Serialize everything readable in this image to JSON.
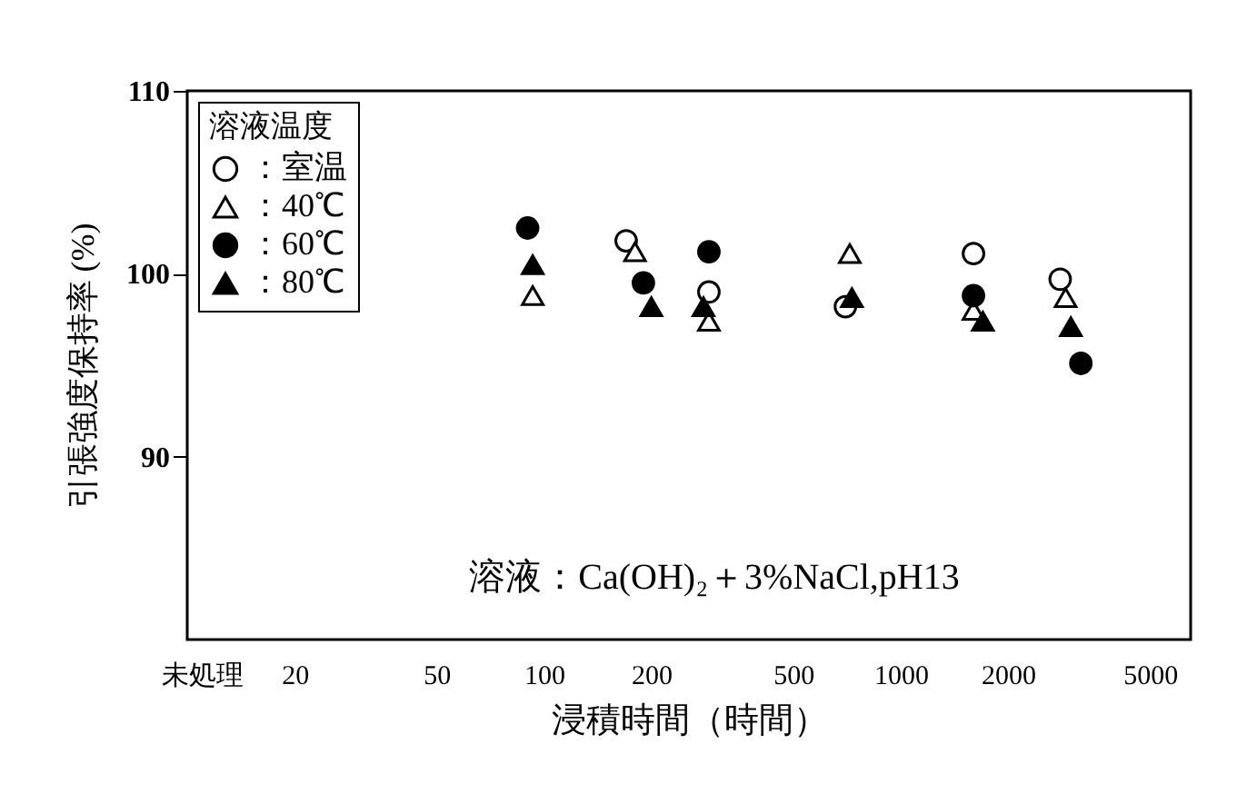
{
  "chart_data": {
    "type": "scatter",
    "xlabel": "浸積時間（時間）",
    "ylabel": "引張強度保持率 (%)",
    "legend_title": "溶液温度",
    "legend": "top left",
    "grid": false,
    "log": "x",
    "xlim": [
      10,
      6500
    ],
    "xticks": [
      {
        "value": 11,
        "label": "未処理"
      },
      20,
      50,
      100,
      200,
      500,
      1000,
      2000,
      5000
    ],
    "ylim": [
      80,
      110
    ],
    "yticks": [
      90,
      100,
      110
    ],
    "annotations": [
      "溶液：Ca(OH)₂＋3%NaCl,pH13"
    ],
    "series": [
      {
        "name": "：室温",
        "color": "#000000",
        "marker": "circle-open",
        "x": [
          170,
          290,
          700,
          1600,
          2800
        ],
        "values": [
          101.8,
          99.0,
          98.2,
          101.1,
          99.7
        ]
      },
      {
        "name": "：40℃",
        "color": "#000000",
        "marker": "triangle-open",
        "x": [
          93,
          180,
          290,
          720,
          1600,
          2900
        ],
        "values": [
          98.8,
          101.2,
          97.4,
          101.1,
          98.0,
          98.7
        ]
      },
      {
        "name": "：60℃",
        "color": "#000000",
        "marker": "circle",
        "x": [
          90,
          190,
          290,
          1600,
          3200
        ],
        "values": [
          102.5,
          99.5,
          101.2,
          98.8,
          95.1
        ]
      },
      {
        "name": "：80℃",
        "color": "#000000",
        "marker": "triangle",
        "x": [
          93,
          200,
          280,
          730,
          1700,
          3000
        ],
        "values": [
          100.5,
          98.2,
          98.2,
          98.7,
          97.4,
          97.1
        ]
      }
    ]
  }
}
